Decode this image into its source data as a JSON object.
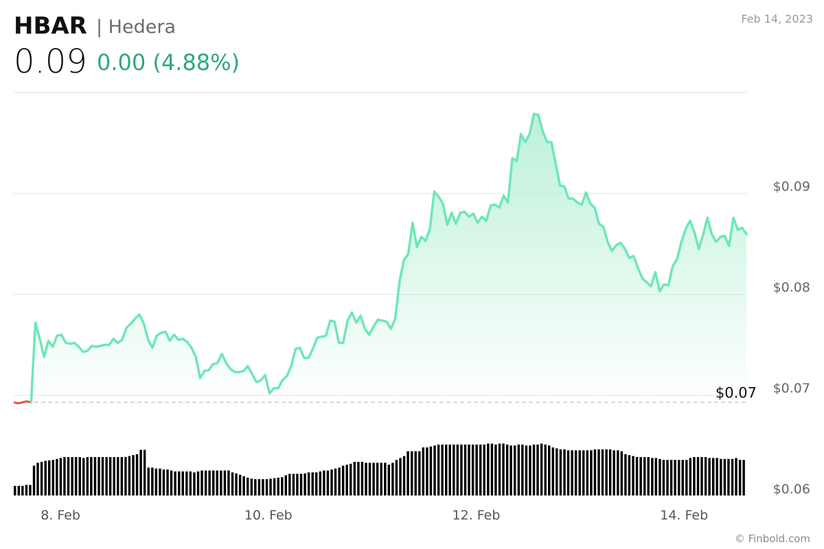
{
  "header": {
    "symbol": "HBAR",
    "name": "| Hedera",
    "date": "Feb 14, 2023",
    "price": "0.09",
    "change": "0.00 (4.88%)"
  },
  "footer": {
    "source": "© Finbold.com"
  },
  "colors": {
    "line": "#6ee7b7",
    "fill_top": "#b8f0d6",
    "negative": "#e5533d",
    "volume": "#000000",
    "grid": "#e0e0e0",
    "baseline": "#cccccc"
  },
  "chart_data": {
    "type": "line",
    "y_tick_labels": [
      "$0.09",
      "$0.08",
      "$0.07",
      "$0.06"
    ],
    "y_ticks": [
      0.09,
      0.08,
      0.07,
      0.06
    ],
    "ylim": [
      0.06,
      0.1
    ],
    "x_tick_labels": [
      "8. Feb",
      "10. Feb",
      "12. Feb",
      "14. Feb"
    ],
    "x_ticks": [
      1,
      3,
      5,
      7
    ],
    "xlim": [
      0.55,
      7.6
    ],
    "open_price": 0.0693,
    "open_label": "$0.07",
    "grid": true,
    "price": [
      0.0693,
      0.0692,
      0.0693,
      0.0694,
      0.0693,
      0.0772,
      0.0756,
      0.0738,
      0.0754,
      0.0748,
      0.0759,
      0.076,
      0.0752,
      0.0751,
      0.0752,
      0.0748,
      0.0743,
      0.0744,
      0.0749,
      0.0748,
      0.0749,
      0.075,
      0.075,
      0.0756,
      0.0752,
      0.0755,
      0.0767,
      0.0771,
      0.0776,
      0.078,
      0.0771,
      0.0755,
      0.0747,
      0.0759,
      0.0762,
      0.0763,
      0.0754,
      0.076,
      0.0755,
      0.0756,
      0.0753,
      0.0747,
      0.0738,
      0.0717,
      0.0724,
      0.0725,
      0.0731,
      0.0732,
      0.0741,
      0.0732,
      0.0726,
      0.0723,
      0.0723,
      0.0724,
      0.0729,
      0.0721,
      0.0713,
      0.0715,
      0.072,
      0.0702,
      0.0707,
      0.0707,
      0.0715,
      0.0719,
      0.0729,
      0.0746,
      0.0747,
      0.0737,
      0.0737,
      0.0746,
      0.0757,
      0.0758,
      0.0759,
      0.0774,
      0.0773,
      0.0752,
      0.0752,
      0.0774,
      0.0782,
      0.0772,
      0.0779,
      0.0766,
      0.076,
      0.0768,
      0.0775,
      0.0774,
      0.0773,
      0.0766,
      0.0776,
      0.0813,
      0.0834,
      0.084,
      0.0871,
      0.0847,
      0.0857,
      0.0853,
      0.0865,
      0.0902,
      0.0897,
      0.089,
      0.0869,
      0.0881,
      0.087,
      0.0881,
      0.0882,
      0.0877,
      0.088,
      0.0871,
      0.0877,
      0.0873,
      0.0888,
      0.0889,
      0.0886,
      0.0898,
      0.0891,
      0.0935,
      0.0932,
      0.0959,
      0.0951,
      0.0959,
      0.0979,
      0.0978,
      0.0962,
      0.0951,
      0.0951,
      0.093,
      0.0908,
      0.0907,
      0.0895,
      0.0895,
      0.0891,
      0.0889,
      0.0901,
      0.089,
      0.0886,
      0.087,
      0.0867,
      0.0852,
      0.0843,
      0.0849,
      0.0851,
      0.0845,
      0.0836,
      0.0838,
      0.0826,
      0.0816,
      0.0812,
      0.0808,
      0.0822,
      0.0803,
      0.081,
      0.0809,
      0.0828,
      0.0835,
      0.0852,
      0.0865,
      0.0873,
      0.0862,
      0.0845,
      0.0859,
      0.0876,
      0.086,
      0.0852,
      0.0857,
      0.0858,
      0.0848,
      0.0876,
      0.0864,
      0.0866,
      0.086
    ],
    "volume_levels": [
      0.2,
      0.2,
      0.2,
      0.22,
      0.22,
      0.62,
      0.68,
      0.7,
      0.72,
      0.73,
      0.74,
      0.76,
      0.78,
      0.8,
      0.8,
      0.8,
      0.8,
      0.8,
      0.78,
      0.8,
      0.8,
      0.8,
      0.8,
      0.8,
      0.8,
      0.8,
      0.8,
      0.8,
      0.8,
      0.8,
      0.82,
      0.84,
      0.86,
      0.95,
      0.95,
      0.58,
      0.58,
      0.56,
      0.56,
      0.54,
      0.54,
      0.52,
      0.5,
      0.5,
      0.5,
      0.5,
      0.5,
      0.48,
      0.5,
      0.52,
      0.52,
      0.52,
      0.52,
      0.52,
      0.52,
      0.52,
      0.52,
      0.48,
      0.46,
      0.43,
      0.4,
      0.37,
      0.35,
      0.34,
      0.34,
      0.34,
      0.34,
      0.35,
      0.36,
      0.37,
      0.38,
      0.42,
      0.45,
      0.45,
      0.45,
      0.45,
      0.46,
      0.48,
      0.48,
      0.48,
      0.5,
      0.52,
      0.52,
      0.54,
      0.56,
      0.58,
      0.62,
      0.64,
      0.66,
      0.7,
      0.7,
      0.7,
      0.68,
      0.68,
      0.68,
      0.68,
      0.68,
      0.68,
      0.64,
      0.68,
      0.74,
      0.78,
      0.82,
      0.92,
      0.92,
      0.92,
      0.92,
      1.0,
      1.0,
      1.02,
      1.04,
      1.06,
      1.06,
      1.06,
      1.06,
      1.06,
      1.06,
      1.06,
      1.06,
      1.06,
      1.06,
      1.06,
      1.06,
      1.06,
      1.08,
      1.08,
      1.06,
      1.08,
      1.08,
      1.06,
      1.04,
      1.04,
      1.06,
      1.06,
      1.04,
      1.04,
      1.06,
      1.06,
      1.08,
      1.06,
      1.04,
      1.0,
      0.98,
      0.96,
      0.96,
      0.94,
      0.94,
      0.94,
      0.94,
      0.94,
      0.94,
      0.94,
      0.96,
      0.96,
      0.96,
      0.96,
      0.96,
      0.94,
      0.94,
      0.92,
      0.86,
      0.84,
      0.82,
      0.8,
      0.8,
      0.8,
      0.8,
      0.78,
      0.78,
      0.76,
      0.74,
      0.74,
      0.74,
      0.74,
      0.74,
      0.74,
      0.74,
      0.78,
      0.8,
      0.8,
      0.8,
      0.8,
      0.78,
      0.78,
      0.78,
      0.76,
      0.76,
      0.76,
      0.76,
      0.78,
      0.74,
      0.74
    ]
  }
}
